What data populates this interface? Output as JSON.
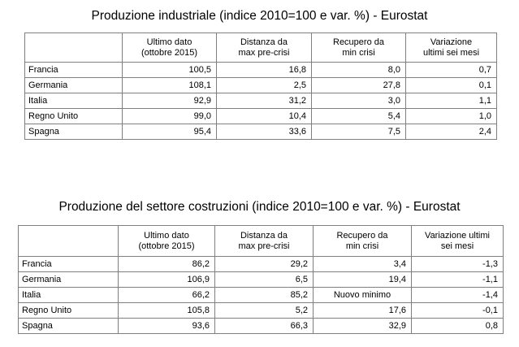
{
  "table1": {
    "title": "Produzione industriale (indice 2010=100 e var. %) - Eurostat",
    "headers": [
      "",
      "Ultimo dato\n(ottobre 2015)",
      "Distanza da\nmax pre-crisi",
      "Recupero da\nmin crisi",
      "Variazione\nultimi sei mesi"
    ],
    "rows": [
      {
        "country": "Francia",
        "values": [
          "100,5",
          "16,8",
          "8,0",
          "0,7"
        ]
      },
      {
        "country": "Germania",
        "values": [
          "108,1",
          "2,5",
          "27,8",
          "0,1"
        ]
      },
      {
        "country": "Italia",
        "values": [
          "92,9",
          "31,2",
          "3,0",
          "1,1"
        ]
      },
      {
        "country": "Regno Unito",
        "values": [
          "99,0",
          "10,4",
          "5,4",
          "1,0"
        ]
      },
      {
        "country": "Spagna",
        "values": [
          "95,4",
          "33,6",
          "7,5",
          "2,4"
        ]
      }
    ]
  },
  "table2": {
    "title": "Produzione del settore costruzioni (indice 2010=100 e var. %) - Eurostat",
    "headers": [
      "",
      "Ultimo dato\n(ottobre 2015)",
      "Distanza da\nmax pre-crisi",
      "Recupero da\nmin crisi",
      "Variazione ultimi\nsei mesi"
    ],
    "rows": [
      {
        "country": "Francia",
        "values": [
          "86,2",
          "29,2",
          "3,4",
          "-1,3"
        ]
      },
      {
        "country": "Germania",
        "values": [
          "106,9",
          "6,5",
          "19,4",
          "-1,1"
        ]
      },
      {
        "country": "Italia",
        "values": [
          "66,2",
          "85,2",
          "Nuovo minimo",
          "-1,4"
        ]
      },
      {
        "country": "Regno Unito",
        "values": [
          "105,8",
          "5,2",
          "17,6",
          "-0,1"
        ]
      },
      {
        "country": "Spagna",
        "values": [
          "93,6",
          "66,3",
          "32,9",
          "0,8"
        ]
      }
    ]
  }
}
